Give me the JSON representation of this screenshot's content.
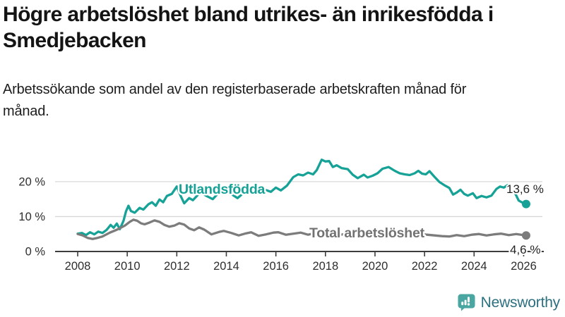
{
  "title": "Högre arbetslöshet bland utrikes- än inrikesfödda i Smedjebacken",
  "subtitle": "Arbetssökande som andel av den registerbaserade arbetskraften månad för månad.",
  "footer": {
    "brand": "Newsworthy",
    "logo_icon": "newsworthy-speech-bubble-barchart-icon"
  },
  "colors": {
    "foreign_born_line": "#16a296",
    "total_line": "#7c7c7c",
    "total_label": "#727272",
    "axis": "#3d3d3d",
    "gridline": "#d8d8d8",
    "tick_text": "#2e2e2e",
    "end_value_text": "#232323",
    "logo_icon": "#4aa6a1",
    "logo_text": "#2c7080"
  },
  "chart_data": {
    "type": "line",
    "title": "",
    "xlabel": "",
    "ylabel": "",
    "grid": "horizontal",
    "x_axis": {
      "tick_values": [
        2008,
        2010,
        2012,
        2014,
        2016,
        2018,
        2020,
        2022,
        2024,
        2026
      ],
      "tick_labels": [
        "2008",
        "2010",
        "2012",
        "2014",
        "2016",
        "2018",
        "2020",
        "2022",
        "2024",
        "2026"
      ],
      "range": [
        2007.1,
        2026.8
      ]
    },
    "y_axis": {
      "tick_values": [
        0,
        10,
        20
      ],
      "tick_labels": [
        "0 %",
        "10 %",
        "20 %"
      ],
      "range": [
        0,
        27
      ]
    },
    "series": [
      {
        "name": "Utlandsfödda",
        "end_label": "13,6 %",
        "end_value": 13.6,
        "color": "#16a296",
        "points": [
          [
            2008.0,
            5.1
          ],
          [
            2008.17,
            5.3
          ],
          [
            2008.33,
            4.7
          ],
          [
            2008.5,
            5.5
          ],
          [
            2008.67,
            4.9
          ],
          [
            2008.83,
            5.7
          ],
          [
            2009.0,
            5.3
          ],
          [
            2009.17,
            6.2
          ],
          [
            2009.33,
            7.6
          ],
          [
            2009.45,
            6.8
          ],
          [
            2009.58,
            8.0
          ],
          [
            2009.7,
            6.4
          ],
          [
            2009.85,
            8.8
          ],
          [
            2009.95,
            11.5
          ],
          [
            2010.05,
            13.1
          ],
          [
            2010.15,
            11.6
          ],
          [
            2010.3,
            11.1
          ],
          [
            2010.5,
            12.5
          ],
          [
            2010.65,
            12.0
          ],
          [
            2010.85,
            13.5
          ],
          [
            2011.0,
            14.1
          ],
          [
            2011.15,
            13.1
          ],
          [
            2011.3,
            14.9
          ],
          [
            2011.45,
            14.1
          ],
          [
            2011.6,
            15.9
          ],
          [
            2011.8,
            16.5
          ],
          [
            2012.0,
            18.6
          ],
          [
            2012.15,
            16.0
          ],
          [
            2012.3,
            13.8
          ],
          [
            2012.5,
            15.3
          ],
          [
            2012.65,
            14.7
          ],
          [
            2012.85,
            16.2
          ],
          [
            2013.0,
            16.8
          ],
          [
            2013.2,
            15.9
          ],
          [
            2013.45,
            15.0
          ],
          [
            2013.7,
            16.9
          ],
          [
            2014.0,
            17.4
          ],
          [
            2014.3,
            16.0
          ],
          [
            2014.45,
            15.3
          ],
          [
            2014.7,
            16.8
          ],
          [
            2015.0,
            17.6
          ],
          [
            2015.3,
            17.0
          ],
          [
            2015.6,
            17.6
          ],
          [
            2015.8,
            17.1
          ],
          [
            2016.0,
            18.3
          ],
          [
            2016.2,
            17.5
          ],
          [
            2016.45,
            18.9
          ],
          [
            2016.7,
            21.3
          ],
          [
            2016.9,
            22.1
          ],
          [
            2017.1,
            21.8
          ],
          [
            2017.3,
            22.6
          ],
          [
            2017.5,
            22.1
          ],
          [
            2017.65,
            23.3
          ],
          [
            2017.85,
            26.3
          ],
          [
            2018.0,
            25.8
          ],
          [
            2018.15,
            25.9
          ],
          [
            2018.3,
            24.2
          ],
          [
            2018.45,
            24.7
          ],
          [
            2018.65,
            23.9
          ],
          [
            2018.9,
            23.6
          ],
          [
            2019.1,
            22.0
          ],
          [
            2019.3,
            21.0
          ],
          [
            2019.55,
            22.0
          ],
          [
            2019.7,
            21.2
          ],
          [
            2019.9,
            21.7
          ],
          [
            2020.1,
            22.4
          ],
          [
            2020.3,
            23.7
          ],
          [
            2020.55,
            24.2
          ],
          [
            2020.8,
            23.1
          ],
          [
            2021.0,
            22.4
          ],
          [
            2021.2,
            22.1
          ],
          [
            2021.4,
            21.9
          ],
          [
            2021.6,
            22.4
          ],
          [
            2021.75,
            23.1
          ],
          [
            2021.9,
            22.3
          ],
          [
            2022.05,
            22.1
          ],
          [
            2022.2,
            23.0
          ],
          [
            2022.4,
            21.4
          ],
          [
            2022.6,
            19.9
          ],
          [
            2022.8,
            19.0
          ],
          [
            2023.0,
            18.2
          ],
          [
            2023.15,
            16.3
          ],
          [
            2023.3,
            16.9
          ],
          [
            2023.45,
            17.7
          ],
          [
            2023.6,
            16.5
          ],
          [
            2023.75,
            16.0
          ],
          [
            2023.95,
            16.7
          ],
          [
            2024.1,
            15.3
          ],
          [
            2024.3,
            15.9
          ],
          [
            2024.5,
            15.5
          ],
          [
            2024.7,
            16.0
          ],
          [
            2024.9,
            17.9
          ],
          [
            2025.05,
            18.6
          ],
          [
            2025.2,
            18.3
          ],
          [
            2025.35,
            19.0
          ],
          [
            2025.5,
            17.2
          ],
          [
            2025.65,
            16.8
          ],
          [
            2025.8,
            14.6
          ],
          [
            2026.0,
            13.8
          ],
          [
            2026.1,
            13.6
          ]
        ]
      },
      {
        "name": "Total arbetslöshet",
        "end_label": "4,6 %",
        "end_value": 4.6,
        "color": "#7c7c7c",
        "points": [
          [
            2008.0,
            5.0
          ],
          [
            2008.2,
            4.6
          ],
          [
            2008.4,
            3.9
          ],
          [
            2008.6,
            3.6
          ],
          [
            2008.8,
            3.9
          ],
          [
            2009.0,
            4.3
          ],
          [
            2009.3,
            5.4
          ],
          [
            2009.6,
            6.3
          ],
          [
            2009.9,
            7.4
          ],
          [
            2010.1,
            8.5
          ],
          [
            2010.25,
            9.1
          ],
          [
            2010.4,
            8.8
          ],
          [
            2010.55,
            8.1
          ],
          [
            2010.7,
            7.8
          ],
          [
            2010.9,
            8.3
          ],
          [
            2011.1,
            8.9
          ],
          [
            2011.3,
            8.5
          ],
          [
            2011.5,
            7.6
          ],
          [
            2011.7,
            7.1
          ],
          [
            2011.9,
            7.4
          ],
          [
            2012.1,
            8.1
          ],
          [
            2012.3,
            7.7
          ],
          [
            2012.5,
            6.6
          ],
          [
            2012.7,
            6.1
          ],
          [
            2012.9,
            6.9
          ],
          [
            2013.1,
            6.3
          ],
          [
            2013.4,
            4.9
          ],
          [
            2013.7,
            5.6
          ],
          [
            2013.9,
            5.9
          ],
          [
            2014.2,
            5.3
          ],
          [
            2014.5,
            4.6
          ],
          [
            2014.8,
            5.2
          ],
          [
            2015.0,
            5.5
          ],
          [
            2015.3,
            4.5
          ],
          [
            2015.6,
            4.9
          ],
          [
            2015.9,
            5.4
          ],
          [
            2016.1,
            5.5
          ],
          [
            2016.4,
            4.8
          ],
          [
            2016.7,
            5.1
          ],
          [
            2017.0,
            5.4
          ],
          [
            2017.3,
            4.8
          ],
          [
            2017.6,
            5.3
          ],
          [
            2017.9,
            5.6
          ],
          [
            2018.2,
            5.0
          ],
          [
            2018.5,
            4.7
          ],
          [
            2018.8,
            5.0
          ],
          [
            2019.1,
            4.7
          ],
          [
            2019.4,
            4.5
          ],
          [
            2019.7,
            4.7
          ],
          [
            2020.0,
            5.0
          ],
          [
            2020.3,
            6.0
          ],
          [
            2020.6,
            6.3
          ],
          [
            2020.9,
            5.9
          ],
          [
            2021.2,
            5.7
          ],
          [
            2021.5,
            5.4
          ],
          [
            2021.8,
            5.1
          ],
          [
            2022.1,
            4.8
          ],
          [
            2022.4,
            4.6
          ],
          [
            2022.7,
            4.4
          ],
          [
            2023.0,
            4.3
          ],
          [
            2023.3,
            4.7
          ],
          [
            2023.6,
            4.4
          ],
          [
            2023.9,
            4.8
          ],
          [
            2024.2,
            5.0
          ],
          [
            2024.5,
            4.6
          ],
          [
            2024.8,
            4.9
          ],
          [
            2025.1,
            5.1
          ],
          [
            2025.4,
            4.7
          ],
          [
            2025.7,
            5.0
          ],
          [
            2025.9,
            4.8
          ],
          [
            2026.1,
            4.6
          ]
        ]
      }
    ]
  }
}
